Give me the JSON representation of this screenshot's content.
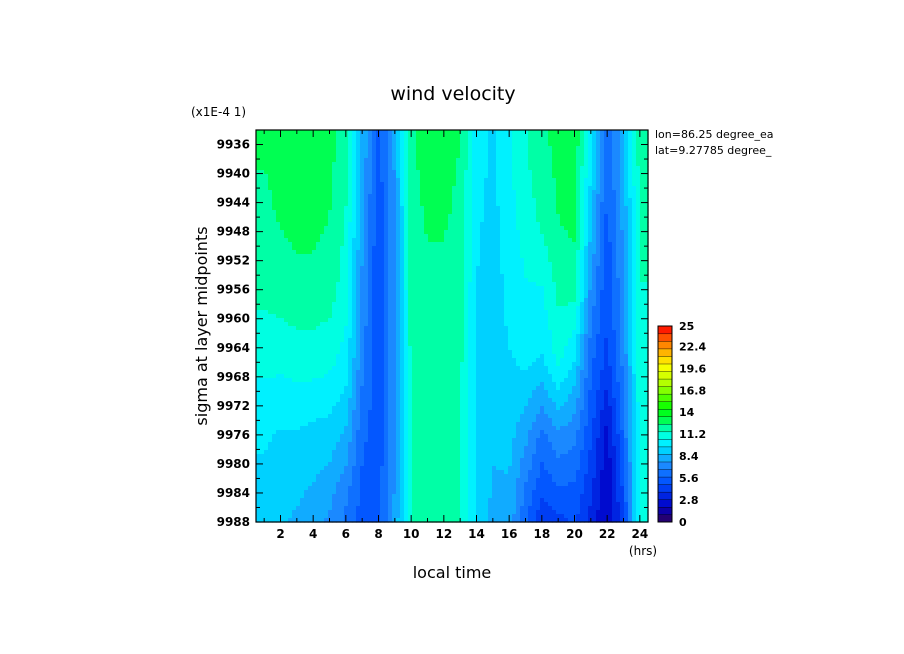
{
  "chart_data": {
    "type": "heatmap",
    "title": "wind velocity",
    "scale_note": "(x1E-4 1)",
    "xlabel": "local time",
    "xunit": "(hrs)",
    "ylabel": "sigma at layer midpoints",
    "xlim": [
      0.5,
      24.5
    ],
    "ylim": [
      9988,
      9934
    ],
    "x_ticks": [
      "2",
      "4",
      "6",
      "8",
      "10",
      "12",
      "14",
      "16",
      "18",
      "20",
      "22",
      "24"
    ],
    "y_ticks": [
      "9936",
      "9940",
      "9944",
      "9948",
      "9952",
      "9956",
      "9960",
      "9964",
      "9968",
      "9972",
      "9976",
      "9980",
      "9984",
      "9988"
    ],
    "info_lines": [
      "lon=86.25 degree_ea",
      "lat=9.27785 degree_"
    ],
    "colorbar": {
      "min": 0,
      "max": 25,
      "labels": [
        "25",
        "22.4",
        "19.6",
        "16.8",
        "14",
        "11.2",
        "8.4",
        "5.6",
        "2.8",
        "0"
      ]
    },
    "x": [
      1,
      2,
      3,
      4,
      5,
      6,
      7,
      8,
      9,
      10,
      11,
      12,
      13,
      14,
      15,
      16,
      17,
      18,
      19,
      20,
      21,
      22,
      23,
      24
    ],
    "y": [
      9936,
      9946,
      9956,
      9966,
      9976,
      9984,
      9988
    ],
    "z": [
      [
        12.6,
        12.8,
        13.0,
        13.0,
        12.8,
        12.0,
        8.5,
        5.5,
        8.0,
        12.4,
        12.8,
        12.8,
        12.5,
        10.0,
        9.5,
        10.5,
        11.5,
        12.2,
        12.8,
        13.2,
        10.0,
        6.0,
        8.5,
        12.0
      ],
      [
        12.3,
        12.6,
        12.8,
        12.8,
        12.5,
        11.5,
        8.0,
        5.0,
        7.5,
        12.2,
        12.6,
        12.6,
        12.3,
        9.8,
        9.3,
        10.2,
        11.0,
        11.8,
        12.5,
        12.8,
        9.0,
        5.5,
        8.0,
        11.8
      ],
      [
        11.8,
        12.0,
        12.2,
        12.2,
        12.0,
        11.0,
        7.5,
        5.0,
        7.5,
        12.0,
        12.3,
        12.3,
        12.0,
        9.6,
        9.0,
        10.0,
        10.5,
        10.5,
        11.8,
        12.0,
        7.5,
        5.0,
        7.5,
        11.5
      ],
      [
        10.8,
        10.8,
        11.0,
        11.0,
        10.8,
        10.2,
        7.0,
        5.0,
        7.5,
        11.8,
        12.0,
        12.0,
        11.8,
        9.5,
        9.0,
        9.5,
        9.8,
        9.5,
        10.8,
        9.5,
        6.0,
        4.5,
        7.0,
        11.2
      ],
      [
        9.8,
        9.5,
        9.5,
        9.3,
        9.2,
        8.5,
        6.0,
        5.2,
        7.5,
        11.5,
        11.8,
        11.8,
        11.5,
        9.5,
        8.8,
        9.0,
        8.0,
        6.5,
        7.5,
        7.0,
        5.0,
        2.5,
        6.0,
        11.0
      ],
      [
        9.2,
        9.0,
        8.8,
        8.5,
        8.0,
        7.0,
        5.5,
        5.3,
        7.8,
        11.5,
        11.8,
        11.8,
        11.5,
        9.4,
        8.5,
        8.5,
        6.5,
        5.0,
        5.5,
        5.5,
        4.0,
        2.0,
        5.0,
        11.0
      ],
      [
        9.0,
        8.8,
        8.5,
        8.2,
        7.5,
        6.5,
        5.3,
        5.5,
        8.0,
        11.5,
        11.8,
        11.8,
        11.5,
        9.3,
        8.5,
        8.3,
        6.0,
        4.0,
        4.5,
        5.0,
        3.5,
        1.8,
        4.5,
        11.0
      ]
    ]
  }
}
